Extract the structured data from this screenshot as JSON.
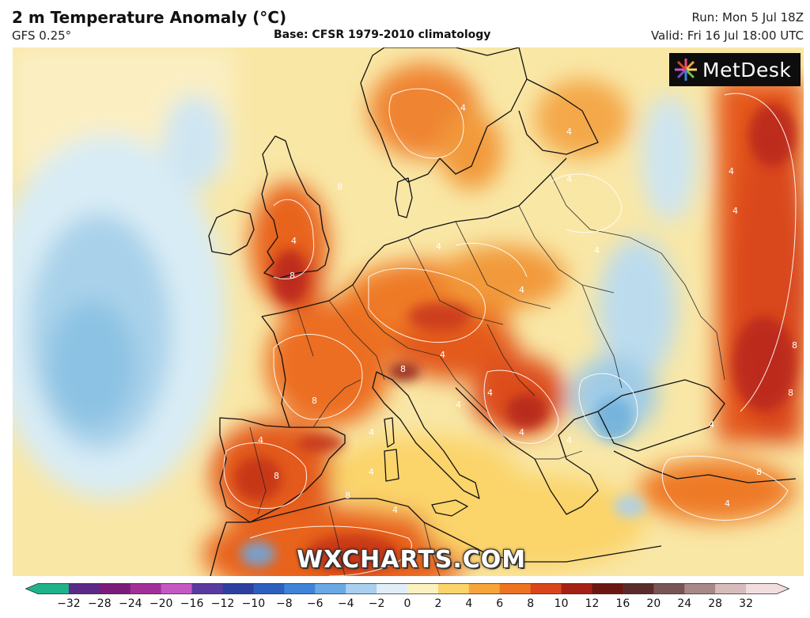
{
  "header": {
    "title": "2 m Temperature Anomaly (°C)",
    "model": "GFS 0.25°",
    "base": "Base: CFSR 1979-2010 climatology",
    "run": "Run: Mon 5 Jul 18Z",
    "valid": "Valid: Fri 16 Jul 18:00 UTC"
  },
  "logo": {
    "text": "MetDesk"
  },
  "watermark": "WXCHARTS.COM",
  "legend": {
    "ticks": [
      "−32",
      "−28",
      "−24",
      "−20",
      "−16",
      "−12",
      "−10",
      "−8",
      "−6",
      "−4",
      "−2",
      "0",
      "2",
      "4",
      "6",
      "8",
      "10",
      "12",
      "16",
      "20",
      "24",
      "28",
      "32"
    ],
    "colors": [
      "#1fb38c",
      "#5b2a86",
      "#7b1c7b",
      "#a23099",
      "#c658c4",
      "#5a3aa0",
      "#2f3f9e",
      "#2d5fbf",
      "#3f84d8",
      "#6aa9e3",
      "#a9d0ef",
      "#dfeef7",
      "#fbf2c0",
      "#fbd46a",
      "#f7a43a",
      "#ee7421",
      "#d9461b",
      "#a52015",
      "#6b1711",
      "#5b2b2b",
      "#7a5555",
      "#a88888",
      "#d8bcbc",
      "#f2dede"
    ]
  },
  "map": {
    "contour_labels": [
      "4",
      "4",
      "4",
      "8",
      "8",
      "4",
      "4",
      "4",
      "8",
      "4",
      "4",
      "4",
      "4",
      "4",
      "8",
      "8",
      "4",
      "8",
      "4",
      "8",
      "8",
      "4",
      "4",
      "4",
      "4",
      "4",
      "4",
      "8",
      "4"
    ]
  }
}
